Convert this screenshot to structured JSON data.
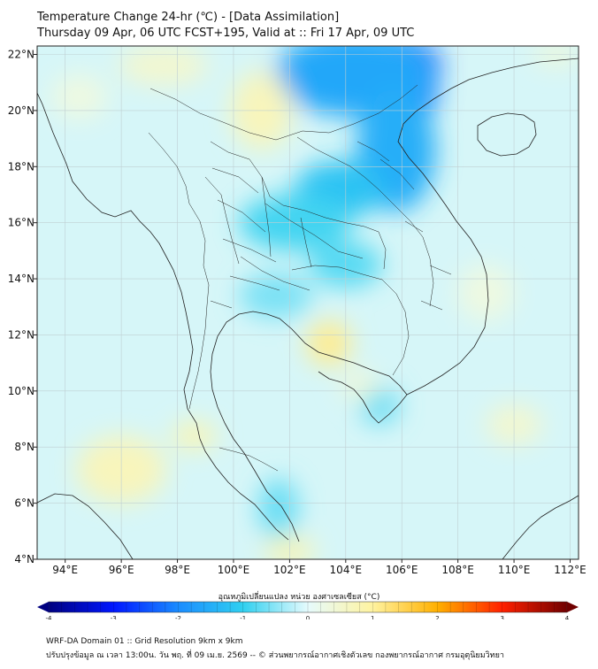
{
  "title_line1": "Temperature Change 24-hr (℃) - [Data Assimilation]",
  "title_line2": "Thursday 09 Apr, 06 UTC FCST+195, Valid at :: Fri 17 Apr, 09 UTC",
  "map": {
    "lon_range": [
      93,
      112.3
    ],
    "lat_range": [
      4,
      22.3
    ],
    "x_ticks": [
      {
        "value": 94,
        "label": "94°E"
      },
      {
        "value": 96,
        "label": "96°E"
      },
      {
        "value": 98,
        "label": "98°E"
      },
      {
        "value": 100,
        "label": "100°E"
      },
      {
        "value": 102,
        "label": "102°E"
      },
      {
        "value": 104,
        "label": "104°E"
      },
      {
        "value": 106,
        "label": "106°E"
      },
      {
        "value": 108,
        "label": "108°E"
      },
      {
        "value": 110,
        "label": "110°E"
      },
      {
        "value": 112,
        "label": "112°E"
      }
    ],
    "y_ticks": [
      {
        "value": 4,
        "label": "4°N"
      },
      {
        "value": 6,
        "label": "6°N"
      },
      {
        "value": 8,
        "label": "8°N"
      },
      {
        "value": 10,
        "label": "10°N"
      },
      {
        "value": 12,
        "label": "12°N"
      },
      {
        "value": 14,
        "label": "14°N"
      },
      {
        "value": 16,
        "label": "16°N"
      },
      {
        "value": 18,
        "label": "18°N"
      },
      {
        "value": 20,
        "label": "20°N"
      },
      {
        "value": 22,
        "label": "22°N"
      }
    ],
    "background_color": "#d6f6f8",
    "anomalies": [
      {
        "lon": 105.2,
        "lat": 21.6,
        "rx": 2.2,
        "ry": 1.1,
        "value": -2.6
      },
      {
        "lon": 105.9,
        "lat": 20.6,
        "rx": 1.4,
        "ry": 1.0,
        "value": -2.2
      },
      {
        "lon": 104.3,
        "lat": 21.3,
        "rx": 2.8,
        "ry": 1.5,
        "value": -1.6
      },
      {
        "lon": 105.8,
        "lat": 18.6,
        "rx": 1.4,
        "ry": 2.2,
        "value": -1.5
      },
      {
        "lon": 103.8,
        "lat": 17.2,
        "rx": 1.6,
        "ry": 1.0,
        "value": -1.2
      },
      {
        "lon": 102.2,
        "lat": 16.0,
        "rx": 2.0,
        "ry": 1.0,
        "value": -0.9
      },
      {
        "lon": 104.0,
        "lat": 14.5,
        "rx": 1.3,
        "ry": 0.8,
        "value": -0.8
      },
      {
        "lon": 101.5,
        "lat": 13.4,
        "rx": 1.3,
        "ry": 0.8,
        "value": -0.6
      },
      {
        "lon": 105.2,
        "lat": 9.5,
        "rx": 0.7,
        "ry": 0.7,
        "value": -0.7
      },
      {
        "lon": 101.6,
        "lat": 5.8,
        "rx": 0.7,
        "ry": 1.1,
        "value": -0.7
      },
      {
        "lon": 102.0,
        "lat": 4.3,
        "rx": 0.9,
        "ry": 0.5,
        "value": 0.8
      },
      {
        "lon": 96.0,
        "lat": 7.2,
        "rx": 1.6,
        "ry": 1.2,
        "value": 0.7
      },
      {
        "lon": 98.6,
        "lat": 8.4,
        "rx": 0.8,
        "ry": 0.5,
        "value": 0.8
      },
      {
        "lon": 103.4,
        "lat": 11.7,
        "rx": 0.8,
        "ry": 0.8,
        "value": 1.1
      },
      {
        "lon": 101.0,
        "lat": 20.0,
        "rx": 1.1,
        "ry": 1.4,
        "value": 0.7
      },
      {
        "lon": 97.5,
        "lat": 21.6,
        "rx": 1.6,
        "ry": 0.7,
        "value": 0.5
      },
      {
        "lon": 110.0,
        "lat": 8.8,
        "rx": 1.0,
        "ry": 0.7,
        "value": 0.5
      },
      {
        "lon": 104.5,
        "lat": 10.2,
        "rx": 0.7,
        "ry": 0.5,
        "value": 0.4
      },
      {
        "lon": 109.0,
        "lat": 13.5,
        "rx": 1.0,
        "ry": 1.0,
        "value": 0.3
      },
      {
        "lon": 94.5,
        "lat": 20.5,
        "rx": 1.0,
        "ry": 0.8,
        "value": 0.3
      },
      {
        "lon": 111.5,
        "lat": 22.0,
        "rx": 0.8,
        "ry": 0.4,
        "value": 0.4
      }
    ]
  },
  "colorbar": {
    "title": "อุณหภูมิเปลี่ยนแปลง หน่วย องศาเซลเซียส (°C)",
    "min": -4,
    "max": 4,
    "labels": [
      {
        "value": -4,
        "label": "-4"
      },
      {
        "value": -3,
        "label": "-3"
      },
      {
        "value": -2,
        "label": "-2"
      },
      {
        "value": -1,
        "label": "-1"
      },
      {
        "value": 0,
        "label": "0"
      },
      {
        "value": 1,
        "label": "1"
      },
      {
        "value": 2,
        "label": "2"
      },
      {
        "value": 3,
        "label": "3"
      },
      {
        "value": 4,
        "label": "4"
      }
    ],
    "stops": [
      {
        "value": -4,
        "color": "#000080"
      },
      {
        "value": -3,
        "color": "#0016ff"
      },
      {
        "value": -2,
        "color": "#1a8cff"
      },
      {
        "value": -1,
        "color": "#30d0f0"
      },
      {
        "value": 0,
        "color": "#e6fbfd"
      },
      {
        "value": 1,
        "color": "#fff3a0"
      },
      {
        "value": 2,
        "color": "#ffb000"
      },
      {
        "value": 3,
        "color": "#ff2000"
      },
      {
        "value": 4,
        "color": "#700000"
      }
    ]
  },
  "footer_line1": "WRF-DA Domain 01 :: Grid Resolution 9km x 9km",
  "footer_line2": "ปรับปรุงข้อมูล ณ เวลา 13:00น. วัน พฤ. ที่ 09 เม.ย. 2569 -- © ส่วนพยากรณ์อากาศเชิงตัวเลข กองพยากรณ์อากาศ กรมอุตุนิยมวิทยา"
}
